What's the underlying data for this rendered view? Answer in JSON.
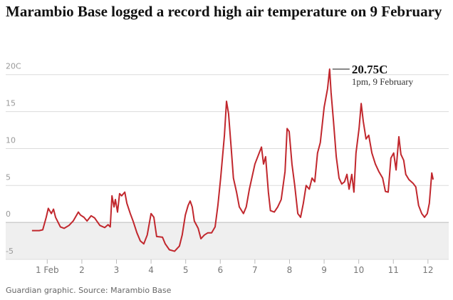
{
  "chart_data": {
    "type": "line",
    "title": "Marambio Base logged a record high air temperature on 9 February",
    "source": "Guardian graphic. Source: Marambio Base",
    "annotation": {
      "label": "20.75C",
      "note": "1pm, 9 February"
    },
    "color": "#c1272d",
    "grid": true,
    "xlim": [
      -0.2,
      12.6
    ],
    "ylim": [
      -5,
      22
    ],
    "yticks": [
      -5,
      0,
      5,
      10,
      15,
      {
        "value": 20,
        "label": "20C"
      }
    ],
    "xticks": [
      {
        "value": 1,
        "label": "1 Feb"
      },
      2,
      3,
      4,
      5,
      6,
      7,
      8,
      9,
      10,
      11,
      12
    ],
    "x": [
      0.56,
      0.77,
      0.87,
      0.97,
      1.03,
      1.12,
      1.18,
      1.24,
      1.38,
      1.49,
      1.63,
      1.75,
      1.9,
      1.96,
      2.06,
      2.15,
      2.27,
      2.37,
      2.52,
      2.66,
      2.76,
      2.82,
      2.87,
      2.93,
      2.97,
      3.03,
      3.09,
      3.15,
      3.24,
      3.3,
      3.4,
      3.48,
      3.59,
      3.69,
      3.79,
      3.89,
      4.0,
      4.08,
      4.16,
      4.33,
      4.41,
      4.53,
      4.68,
      4.82,
      4.9,
      4.99,
      5.07,
      5.13,
      5.19,
      5.25,
      5.36,
      5.44,
      5.54,
      5.64,
      5.75,
      5.85,
      5.93,
      6.01,
      6.12,
      6.18,
      6.24,
      6.32,
      6.38,
      6.47,
      6.55,
      6.67,
      6.75,
      6.84,
      7.0,
      7.19,
      7.25,
      7.31,
      7.39,
      7.45,
      7.56,
      7.66,
      7.76,
      7.87,
      7.93,
      7.99,
      8.07,
      8.15,
      8.24,
      8.32,
      8.4,
      8.48,
      8.57,
      8.65,
      8.73,
      8.81,
      8.89,
      9.0,
      9.1,
      9.16,
      9.2,
      9.27,
      9.35,
      9.43,
      9.51,
      9.59,
      9.66,
      9.72,
      9.8,
      9.86,
      9.92,
      10.01,
      10.07,
      10.13,
      10.21,
      10.29,
      10.38,
      10.48,
      10.58,
      10.69,
      10.77,
      10.85,
      10.93,
      11.01,
      11.08,
      11.16,
      11.22,
      11.3,
      11.36,
      11.45,
      11.57,
      11.65,
      11.73,
      11.82,
      11.9,
      11.98,
      12.04,
      12.11,
      12.15
    ],
    "values": [
      -1.1,
      -1.1,
      -1.0,
      0.7,
      1.9,
      1.2,
      1.8,
      0.7,
      -0.6,
      -0.8,
      -0.4,
      0.2,
      1.4,
      1.0,
      0.7,
      0.2,
      0.9,
      0.6,
      -0.4,
      -0.7,
      -0.3,
      -0.6,
      3.6,
      2.1,
      3.1,
      1.4,
      3.9,
      3.6,
      4.1,
      2.6,
      1.2,
      0.2,
      -1.4,
      -2.5,
      -2.9,
      -1.7,
      1.2,
      0.7,
      -1.9,
      -2.0,
      -2.9,
      -3.7,
      -3.9,
      -3.2,
      -1.7,
      1.0,
      2.3,
      2.9,
      2.1,
      0.2,
      -0.8,
      -2.2,
      -1.7,
      -1.4,
      -1.4,
      -0.6,
      2.3,
      6.0,
      11.8,
      16.4,
      14.7,
      9.8,
      6.0,
      4.1,
      2.1,
      1.2,
      2.1,
      4.5,
      7.9,
      10.2,
      7.9,
      8.9,
      4.1,
      1.6,
      1.4,
      2.1,
      3.1,
      6.9,
      12.7,
      12.3,
      7.9,
      5.0,
      1.2,
      0.7,
      2.6,
      5.0,
      4.5,
      6.0,
      5.5,
      9.4,
      10.8,
      15.6,
      18.1,
      20.75,
      17.6,
      13.7,
      8.9,
      6.0,
      5.2,
      5.5,
      6.5,
      4.5,
      6.5,
      4.1,
      9.4,
      12.7,
      16.1,
      13.7,
      11.3,
      11.8,
      9.4,
      7.9,
      6.9,
      6.0,
      4.2,
      4.1,
      8.7,
      9.4,
      7.1,
      11.6,
      9.2,
      8.4,
      6.5,
      5.8,
      5.3,
      4.8,
      2.3,
      1.2,
      0.7,
      1.2,
      2.6,
      6.7,
      5.8
    ]
  }
}
